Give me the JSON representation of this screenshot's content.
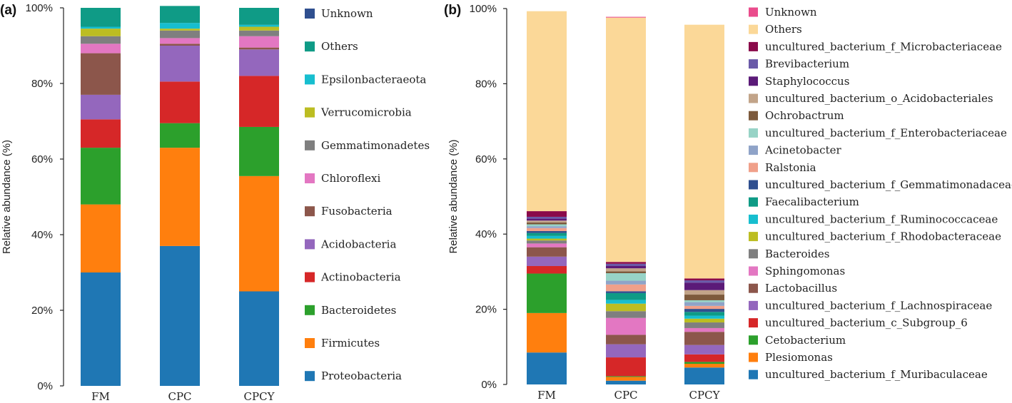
{
  "chart_data": [
    {
      "type": "bar",
      "stacked": true,
      "panel_label": "(a)",
      "ylabel": "Relative abundance (%)",
      "ylim": [
        0,
        100
      ],
      "yticks": [
        "0%",
        "20%",
        "40%",
        "60%",
        "80%",
        "100%"
      ],
      "categories": [
        "FM",
        "CPC",
        "CPCY"
      ],
      "legend_position": "right",
      "series": [
        {
          "name": "Proteobacteria",
          "color": "#1f77b4",
          "values": [
            30.0,
            37.0,
            25.0
          ]
        },
        {
          "name": "Firmicutes",
          "color": "#ff7f0e",
          "values": [
            18.0,
            26.0,
            30.5
          ]
        },
        {
          "name": "Bacteroidetes",
          "color": "#2ca02c",
          "values": [
            15.0,
            6.5,
            13.0
          ]
        },
        {
          "name": "Actinobacteria",
          "color": "#d62728",
          "values": [
            7.5,
            11.0,
            13.5
          ]
        },
        {
          "name": "Acidobacteria",
          "color": "#9467bd",
          "values": [
            6.5,
            9.5,
            7.0
          ]
        },
        {
          "name": "Fusobacteria",
          "color": "#8c564b",
          "values": [
            11.0,
            0.5,
            0.5
          ]
        },
        {
          "name": "Chloroflexi",
          "color": "#e377c2",
          "values": [
            2.5,
            1.5,
            3.0
          ]
        },
        {
          "name": "Gemmatimonadetes",
          "color": "#7f7f7f",
          "values": [
            2.0,
            2.0,
            1.5
          ]
        },
        {
          "name": "Verrucomicrobia",
          "color": "#bcbd22",
          "values": [
            2.0,
            0.5,
            1.0
          ]
        },
        {
          "name": "Epsilonbacteraeota",
          "color": "#17becf",
          "values": [
            0.5,
            1.5,
            0.5
          ]
        },
        {
          "name": "Others",
          "color": "#0f9b86",
          "values": [
            5.0,
            4.5,
            4.5
          ]
        },
        {
          "name": "Unknown",
          "color": "#2f4f8f",
          "values": [
            0.0,
            0.0,
            0.0
          ]
        }
      ]
    },
    {
      "type": "bar",
      "stacked": true,
      "panel_label": "(b)",
      "ylabel": "Relative abundance (%)",
      "ylim": [
        0,
        100
      ],
      "yticks": [
        "0%",
        "20%",
        "40%",
        "60%",
        "80%",
        "100%"
      ],
      "categories": [
        "FM",
        "CPC",
        "CPCY"
      ],
      "legend_position": "right",
      "series": [
        {
          "name": "uncultured_bacterium_f_Muribaculaceae",
          "color": "#1f77b4",
          "values": [
            8.5,
            1.0,
            4.5
          ]
        },
        {
          "name": "Plesiomonas",
          "color": "#ff7f0e",
          "values": [
            10.5,
            1.0,
            1.0
          ]
        },
        {
          "name": "Cetobacterium",
          "color": "#2ca02c",
          "values": [
            10.5,
            0.2,
            0.5
          ]
        },
        {
          "name": "uncultured_bacterium_c_Subgroup_6",
          "color": "#d62728",
          "values": [
            2.0,
            5.0,
            2.0
          ]
        },
        {
          "name": "uncultured_bacterium_f_Lachnospiraceae",
          "color": "#9467bd",
          "values": [
            2.5,
            3.5,
            2.5
          ]
        },
        {
          "name": "Lactobacillus",
          "color": "#8c564b",
          "values": [
            2.5,
            2.5,
            3.5
          ]
        },
        {
          "name": "Sphingomonas",
          "color": "#e377c2",
          "values": [
            1.0,
            4.5,
            1.0
          ]
        },
        {
          "name": "Bacteroides",
          "color": "#7f7f7f",
          "values": [
            0.8,
            1.8,
            1.5
          ]
        },
        {
          "name": "uncultured_bacterium_f_Rhodobacteraceae",
          "color": "#bcbd22",
          "values": [
            0.5,
            2.0,
            1.0
          ]
        },
        {
          "name": "uncultured_bacterium_f_Ruminococcaceae",
          "color": "#17becf",
          "values": [
            0.7,
            1.0,
            0.8
          ]
        },
        {
          "name": "Faecalibacterium",
          "color": "#0f9b86",
          "values": [
            0.8,
            1.8,
            1.0
          ]
        },
        {
          "name": "uncultured_bacterium_f_Gemmatimonadaceae",
          "color": "#2f4f8f",
          "values": [
            0.5,
            0.5,
            0.8
          ]
        },
        {
          "name": "Ralstonia",
          "color": "#f0a08a",
          "values": [
            0.8,
            1.8,
            0.8
          ]
        },
        {
          "name": "Acinetobacter",
          "color": "#8fa3c8",
          "values": [
            0.5,
            1.0,
            1.0
          ]
        },
        {
          "name": "uncultured_bacterium_f_Enterobacteriaceae",
          "color": "#97d3c6",
          "values": [
            0.5,
            2.0,
            0.5
          ]
        },
        {
          "name": "Ochrobactrum",
          "color": "#7d5a3c",
          "values": [
            0.5,
            0.5,
            1.5
          ]
        },
        {
          "name": "uncultured_bacterium_o_Acidobacteriales",
          "color": "#c2a489",
          "values": [
            0.5,
            0.8,
            1.2
          ]
        },
        {
          "name": "Staphylococcus",
          "color": "#5b1a78",
          "values": [
            0.5,
            0.6,
            2.0
          ]
        },
        {
          "name": "Brevibacterium",
          "color": "#6a5aa8",
          "values": [
            0.5,
            0.6,
            0.6
          ]
        },
        {
          "name": "uncultured_bacterium_f_Microbacteriaceae",
          "color": "#8a0a4a",
          "values": [
            1.5,
            0.5,
            0.5
          ]
        },
        {
          "name": "Others",
          "color": "#fbd898",
          "values": [
            53.2,
            65.0,
            67.5
          ]
        },
        {
          "name": "Unknown",
          "color": "#ea4c8c",
          "values": [
            0.0,
            0.2,
            0.0
          ]
        }
      ]
    }
  ]
}
